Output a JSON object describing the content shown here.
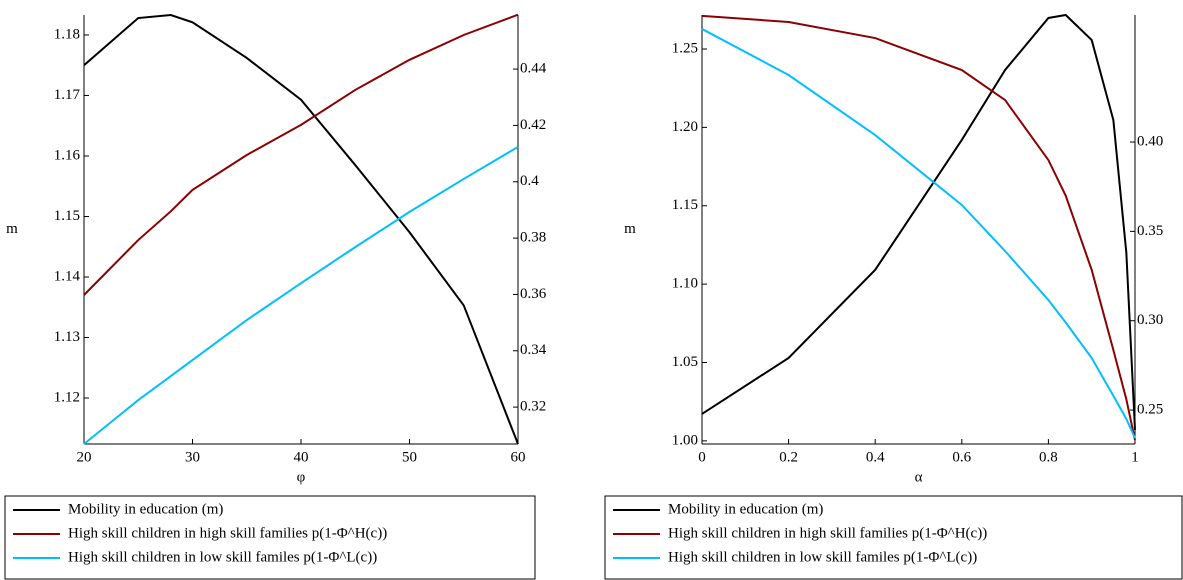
{
  "chart_data": [
    {
      "type": "line",
      "x_label": "φ",
      "y_label": "m",
      "x": [
        20,
        25,
        28,
        30,
        35,
        40,
        45,
        50,
        55,
        60
      ],
      "xlim": [
        20,
        60
      ],
      "xticks": [
        20,
        30,
        40,
        50,
        60
      ],
      "ylim": [
        1.1124,
        1.1833
      ],
      "yticks": [
        1.12,
        1.13,
        1.14,
        1.15,
        1.16,
        1.17,
        1.18
      ],
      "y2lim": [
        0.3069,
        0.4592
      ],
      "y2ticks": [
        0.32,
        0.34,
        0.36,
        0.38,
        0.4,
        0.42,
        0.44
      ],
      "series": [
        {
          "name": "Mobility in education (m)",
          "color": "#000000",
          "values": [
            1.175,
            1.1828,
            1.1833,
            1.1821,
            1.1762,
            1.1693,
            1.1585,
            1.1474,
            1.1353,
            1.1124
          ]
        },
        {
          "name": "High skill children in high skill families p(1-Φ^H(c))",
          "color": "#8b0000",
          "axis": "y2",
          "values": [
            0.3598,
            0.3793,
            0.3895,
            0.3971,
            0.4095,
            0.4202,
            0.4326,
            0.4433,
            0.4521,
            0.4593
          ]
        },
        {
          "name": "High skill children in low skill familes p(1-Φ^L(c))",
          "color": "#00bfff",
          "axis": "y2",
          "values": [
            0.3069,
            0.3225,
            0.331,
            0.3367,
            0.3509,
            0.364,
            0.3768,
            0.3893,
            0.401,
            0.4124
          ]
        }
      ]
    },
    {
      "type": "line",
      "x_label": "α",
      "y_label": "m",
      "x": [
        0,
        0.2,
        0.4,
        0.6,
        0.7,
        0.8,
        0.84,
        0.9,
        0.95,
        0.98,
        1
      ],
      "xlim": [
        0,
        1
      ],
      "xticks": [
        0,
        0.2,
        0.4,
        0.6,
        0.8,
        1
      ],
      "ylim": [
        0.998,
        1.2717
      ],
      "yticks": [
        {
          "value": 1,
          "label": "1.00"
        },
        1.05,
        {
          "value": 1.1,
          "label": "1.10"
        },
        1.15,
        {
          "value": 1.2,
          "label": "1.20"
        },
        1.25
      ],
      "y2lim": [
        0.231,
        0.4711
      ],
      "y2ticks": [
        0.25,
        {
          "value": 0.3,
          "label": "0.30"
        },
        0.35,
        {
          "value": 0.4,
          "label": "0.40"
        }
      ],
      "series": [
        {
          "name": "Mobility in education (m)",
          "color": "#000000",
          "values": [
            1.0172,
            1.0529,
            1.1091,
            1.192,
            1.2366,
            1.2698,
            1.2717,
            1.2557,
            1.2047,
            1.12,
            1.007
          ]
        },
        {
          "name": "High skill children in high skill families p(1-Φ^H(c))",
          "color": "#8b0000",
          "axis": "y2",
          "values": [
            0.4706,
            0.4672,
            0.4582,
            0.4403,
            0.4235,
            0.3899,
            0.37,
            0.3284,
            0.2836,
            0.256,
            0.2332
          ]
        },
        {
          "name": "High skill children in low skill familes p(1-Φ^L(c))",
          "color": "#00bfff",
          "axis": "y2",
          "values": [
            0.4633,
            0.4375,
            0.4039,
            0.3648,
            0.339,
            0.3116,
            0.299,
            0.2791,
            0.258,
            0.245,
            0.2343
          ]
        }
      ]
    }
  ]
}
